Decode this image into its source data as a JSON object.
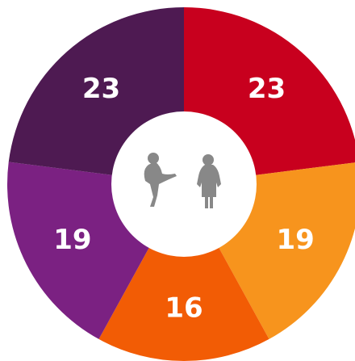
{
  "chart_data": {
    "type": "donut",
    "values": [
      23,
      19,
      16,
      19,
      23
    ],
    "colors": [
      "#c8001e",
      "#f7941d",
      "#f25c05",
      "#7b2182",
      "#4e1a52"
    ]
  }
}
